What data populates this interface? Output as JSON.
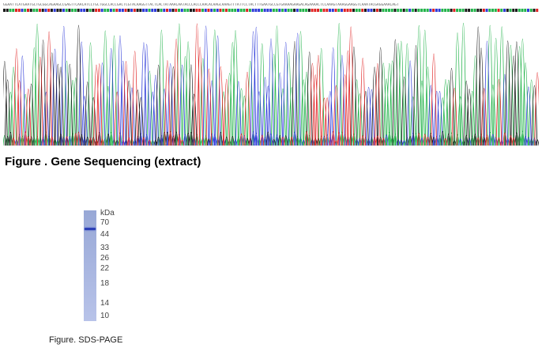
{
  "sequencing": {
    "sequence": "GGAATTCATGAATGCTGCGGCAGAAGCCGAGTTCAACATCCTGCTGGCCACCGACTCGTACAAGGTTACTCACTATAAACAATACCCACCCAACACAAGCAAAGTTTATTCCTACTTTGAATGCCGTGAAAAGAAGACAGAAAACTCCAAAGTAAAGGAAGGTCAAATACGAGGAAACAGT",
    "caption": "Figure . Gene Sequencing (extract)",
    "trace_colors": {
      "A": "#22b34a",
      "C": "#2e3bd9",
      "G": "#1a1a1a",
      "T": "#e02424"
    }
  },
  "gel": {
    "unit_label": "kDa",
    "markers": [
      "70",
      "44",
      "33",
      "26",
      "22",
      "18",
      "14",
      "10"
    ],
    "caption": "Figure. SDS-PAGE"
  }
}
